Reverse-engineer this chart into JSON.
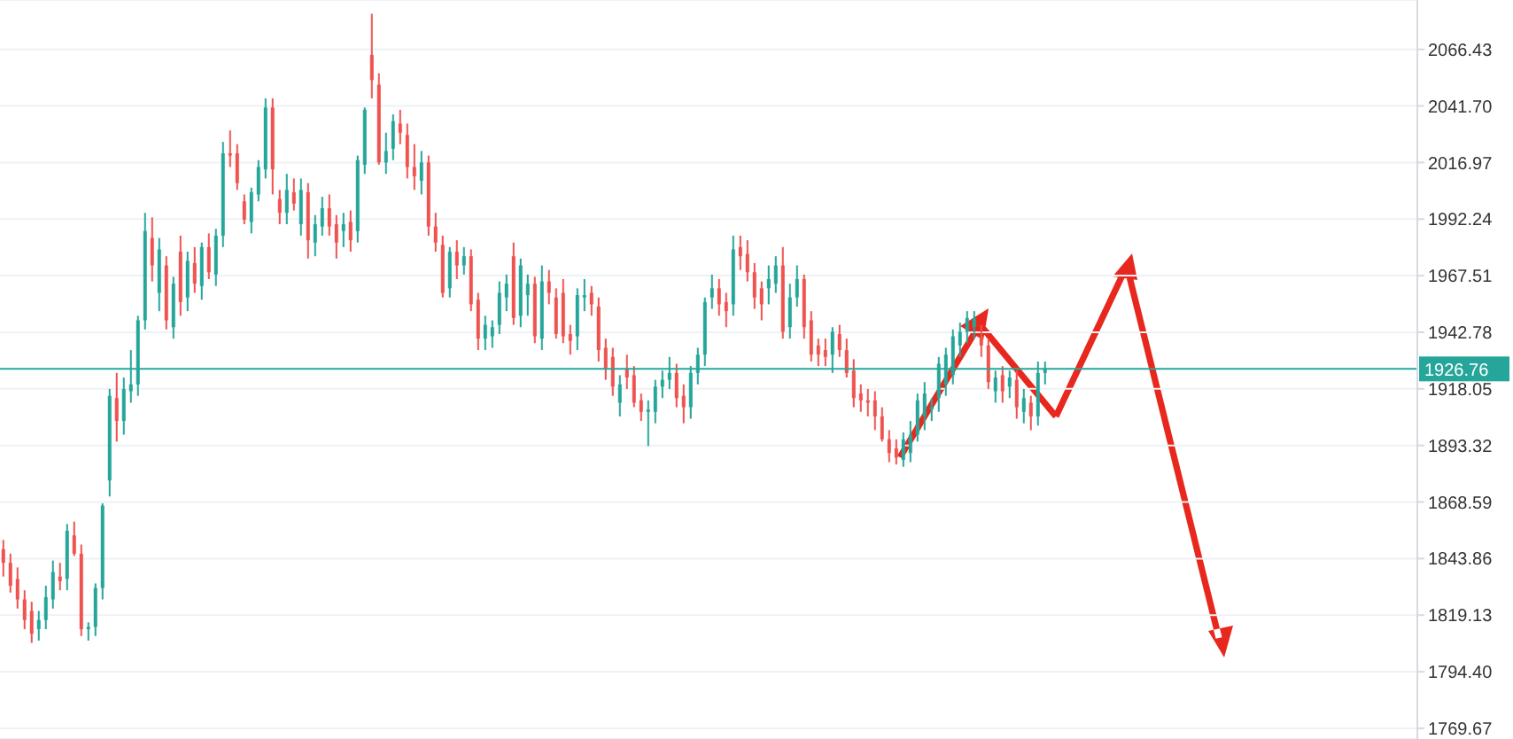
{
  "chart_data": {
    "type": "candlestick",
    "categories": [
      null,
      null,
      null,
      null,
      null,
      null,
      null,
      null,
      null,
      null,
      null,
      null,
      null,
      null,
      null,
      null,
      null,
      null,
      null,
      null,
      null,
      null,
      null,
      null,
      null,
      null,
      null,
      null,
      null,
      null,
      null,
      null,
      null,
      null,
      null,
      null,
      null,
      null,
      null,
      null,
      null,
      null,
      null,
      null,
      null,
      null,
      null,
      null,
      null,
      null,
      null,
      null,
      null,
      null,
      null,
      null,
      null,
      null,
      null,
      null,
      null,
      null,
      null,
      null,
      null,
      null,
      null,
      null,
      null,
      null,
      null,
      null,
      null,
      null,
      null,
      null,
      null,
      null,
      null,
      null,
      null,
      null,
      null,
      null,
      null,
      null,
      null,
      null,
      null,
      null,
      null,
      null,
      null,
      null,
      null,
      null,
      null,
      null,
      null,
      null,
      null,
      null,
      null,
      null,
      null,
      null,
      null,
      null,
      null,
      null,
      null,
      null,
      null,
      null,
      null,
      null,
      null,
      null,
      null,
      null,
      null,
      null,
      null,
      null,
      null,
      null,
      null,
      null,
      null,
      null,
      null,
      null,
      null,
      null,
      null,
      null,
      null,
      null,
      null,
      null,
      null,
      null,
      null,
      null,
      null,
      null,
      null,
      null,
      null,
      null,
      null,
      null,
      null,
      null,
      null,
      null,
      null,
      null,
      null,
      null,
      null,
      null,
      null,
      null,
      null,
      null,
      null,
      null,
      null,
      null,
      null,
      null,
      null,
      null,
      null,
      null,
      null,
      null,
      null,
      null,
      null,
      null,
      null,
      null,
      null,
      null,
      null,
      null,
      null,
      null,
      null,
      null,
      null,
      null,
      null,
      null,
      null,
      null,
      null,
      null
    ],
    "ohlc": [
      [
        1848,
        1852,
        1836,
        1842
      ],
      [
        1842,
        1846,
        1829,
        1832
      ],
      [
        1835,
        1840,
        1822,
        1826
      ],
      [
        1826,
        1830,
        1813,
        1817
      ],
      [
        1821,
        1825,
        1807,
        1811
      ],
      [
        1813,
        1821,
        1808,
        1817
      ],
      [
        1817,
        1832,
        1813,
        1827
      ],
      [
        1826,
        1843,
        1822,
        1838
      ],
      [
        1836,
        1842,
        1830,
        1834
      ],
      [
        1835,
        1859,
        1830,
        1856
      ],
      [
        1854,
        1860,
        1845,
        1846
      ],
      [
        1846,
        1850,
        1810,
        1813
      ],
      [
        1813,
        1816,
        1808,
        1814
      ],
      [
        1814,
        1833,
        1810,
        1831
      ],
      [
        1831,
        1868,
        1826,
        1867
      ],
      [
        1878,
        1918,
        1871,
        1915
      ],
      [
        1914,
        1925,
        1895,
        1904
      ],
      [
        1904,
        1923,
        1898,
        1918
      ],
      [
        1917,
        1935,
        1912,
        1920
      ],
      [
        1920,
        1950,
        1915,
        1948
      ],
      [
        1948,
        1995,
        1944,
        1987
      ],
      [
        1984,
        1993,
        1965,
        1972
      ],
      [
        1960,
        1984,
        1952,
        1979
      ],
      [
        1972,
        1976,
        1944,
        1948
      ],
      [
        1945,
        1967,
        1940,
        1964
      ],
      [
        1978,
        1985,
        1950,
        1956
      ],
      [
        1958,
        1978,
        1952,
        1974
      ],
      [
        1973,
        1980,
        1960,
        1964
      ],
      [
        1963,
        1982,
        1957,
        1980
      ],
      [
        1980,
        1986,
        1966,
        1969
      ],
      [
        1968,
        1988,
        1963,
        1985
      ],
      [
        1985,
        2026,
        1980,
        2021
      ],
      [
        2021,
        2031,
        2015,
        2020
      ],
      [
        2021,
        2025,
        2005,
        2008
      ],
      [
        2000,
        2003,
        1990,
        1992
      ],
      [
        1991,
        2006,
        1986,
        2004
      ],
      [
        2003,
        2018,
        2000,
        2015
      ],
      [
        2014,
        2045,
        2010,
        2041
      ],
      [
        2041,
        2045,
        2003,
        2014
      ],
      [
        2001,
        2005,
        1990,
        1995
      ],
      [
        1995,
        2012,
        1990,
        2005
      ],
      [
        2004,
        2010,
        1996,
        1999
      ],
      [
        1990,
        2010,
        1985,
        2005
      ],
      [
        2004,
        2008,
        1975,
        1983
      ],
      [
        1982,
        1994,
        1976,
        1990
      ],
      [
        1989,
        2002,
        1985,
        1997
      ],
      [
        1997,
        2003,
        1985,
        1989
      ],
      [
        1990,
        1994,
        1975,
        1982
      ],
      [
        1987,
        1995,
        1980,
        1990
      ],
      [
        1991,
        1996,
        1978,
        1983
      ],
      [
        1987,
        2020,
        1982,
        2018
      ],
      [
        2016,
        2041,
        2012,
        2040
      ],
      [
        2064,
        2082,
        2045,
        2053
      ],
      [
        2051,
        2056,
        2016,
        2017
      ],
      [
        2017,
        2030,
        2012,
        2022
      ],
      [
        2023,
        2038,
        2018,
        2035
      ],
      [
        2034,
        2040,
        2025,
        2030
      ],
      [
        2029,
        2034,
        2010,
        2015
      ],
      [
        2015,
        2025,
        2005,
        2011
      ],
      [
        2009,
        2022,
        2003,
        2017
      ],
      [
        2017,
        2020,
        1985,
        1989
      ],
      [
        1989,
        1995,
        1978,
        1982
      ],
      [
        1981,
        1985,
        1958,
        1960
      ],
      [
        1962,
        1980,
        1958,
        1978
      ],
      [
        1978,
        1983,
        1966,
        1972
      ],
      [
        1972,
        1980,
        1968,
        1976
      ],
      [
        1976,
        1979,
        1952,
        1955
      ],
      [
        1957,
        1960,
        1935,
        1940
      ],
      [
        1940,
        1950,
        1935,
        1946
      ],
      [
        1941,
        1948,
        1936,
        1945
      ],
      [
        1946,
        1965,
        1942,
        1960
      ],
      [
        1958,
        1968,
        1952,
        1964
      ],
      [
        1976,
        1982,
        1946,
        1949
      ],
      [
        1950,
        1975,
        1945,
        1972
      ],
      [
        1959,
        1968,
        1950,
        1964
      ],
      [
        1964,
        1967,
        1938,
        1941
      ],
      [
        1940,
        1972,
        1935,
        1965
      ],
      [
        1965,
        1970,
        1955,
        1960
      ],
      [
        1958,
        1962,
        1940,
        1942
      ],
      [
        1960,
        1966,
        1938,
        1941
      ],
      [
        1942,
        1946,
        1933,
        1939
      ],
      [
        1941,
        1962,
        1935,
        1959
      ],
      [
        1958,
        1966,
        1952,
        1959
      ],
      [
        1960,
        1963,
        1950,
        1955
      ],
      [
        1954,
        1958,
        1930,
        1935
      ],
      [
        1936,
        1940,
        1922,
        1927
      ],
      [
        1932,
        1936,
        1915,
        1919
      ],
      [
        1912,
        1924,
        1906,
        1920
      ],
      [
        1927,
        1933,
        1918,
        1923
      ],
      [
        1924,
        1928,
        1910,
        1912
      ],
      [
        1913,
        1916,
        1904,
        1908
      ],
      [
        1908,
        1913,
        1893,
        1909
      ],
      [
        1908,
        1922,
        1903,
        1919
      ],
      [
        1919,
        1926,
        1914,
        1922
      ],
      [
        1922,
        1932,
        1918,
        1925
      ],
      [
        1925,
        1929,
        1910,
        1914
      ],
      [
        1915,
        1920,
        1903,
        1910
      ],
      [
        1910,
        1928,
        1905,
        1925
      ],
      [
        1925,
        1936,
        1920,
        1933
      ],
      [
        1933,
        1958,
        1928,
        1956
      ],
      [
        1958,
        1968,
        1953,
        1962
      ],
      [
        1962,
        1966,
        1950,
        1955
      ],
      [
        1956,
        1960,
        1945,
        1952
      ],
      [
        1955,
        1985,
        1950,
        1979
      ],
      [
        1980,
        1985,
        1970,
        1976
      ],
      [
        1977,
        1983,
        1965,
        1969
      ],
      [
        1969,
        1973,
        1953,
        1958
      ],
      [
        1962,
        1965,
        1948,
        1955
      ],
      [
        1962,
        1972,
        1955,
        1966
      ],
      [
        1964,
        1976,
        1960,
        1972
      ],
      [
        1972,
        1980,
        1940,
        1943
      ],
      [
        1945,
        1964,
        1940,
        1958
      ],
      [
        1958,
        1972,
        1954,
        1966
      ],
      [
        1966,
        1968,
        1940,
        1945
      ],
      [
        1948,
        1952,
        1930,
        1933
      ],
      [
        1937,
        1940,
        1928,
        1933
      ],
      [
        1935,
        1940,
        1928,
        1932
      ],
      [
        1933,
        1945,
        1925,
        1943
      ],
      [
        1942,
        1946,
        1932,
        1935
      ],
      [
        1935,
        1940,
        1923,
        1925
      ],
      [
        1926,
        1931,
        1910,
        1914
      ],
      [
        1916,
        1920,
        1908,
        1913
      ],
      [
        1913,
        1918,
        1906,
        1912
      ],
      [
        1913,
        1917,
        1900,
        1906
      ],
      [
        1906,
        1910,
        1895,
        1896
      ],
      [
        1896,
        1900,
        1886,
        1890
      ],
      [
        1892,
        1896,
        1885,
        1888
      ],
      [
        1887,
        1899,
        1884,
        1896
      ],
      [
        1890,
        1904,
        1886,
        1898
      ],
      [
        1898,
        1916,
        1895,
        1913
      ],
      [
        1906,
        1921,
        1900,
        1916
      ],
      [
        1909,
        1914,
        1904,
        1910
      ],
      [
        1914,
        1932,
        1908,
        1929
      ],
      [
        1920,
        1936,
        1915,
        1933
      ],
      [
        1924,
        1944,
        1920,
        1941
      ],
      [
        1937,
        1947,
        1932,
        1943
      ],
      [
        1943,
        1952,
        1938,
        1949
      ],
      [
        1945,
        1952,
        1940,
        1949
      ],
      [
        1941,
        1946,
        1932,
        1937
      ],
      [
        1937,
        1940,
        1918,
        1921
      ],
      [
        1917,
        1926,
        1912,
        1923
      ],
      [
        1924,
        1928,
        1912,
        1917
      ],
      [
        1919,
        1926,
        1914,
        1923
      ],
      [
        1922,
        1926,
        1905,
        1910
      ],
      [
        1908,
        1918,
        1903,
        1914
      ],
      [
        1912,
        1915,
        1900,
        1906
      ],
      [
        1906,
        1930,
        1902,
        1925
      ],
      [
        1925,
        1930,
        1920,
        1927
      ],
      null,
      null,
      null,
      null,
      null,
      null,
      null,
      null,
      null,
      null,
      null,
      null,
      null,
      null,
      null,
      null,
      null,
      null,
      null,
      null,
      null,
      null,
      null,
      null,
      null,
      null,
      null,
      null,
      null,
      null,
      null,
      null,
      null,
      null,
      null,
      null,
      null,
      null,
      null,
      null,
      null,
      null,
      null,
      null,
      null,
      null,
      null,
      null,
      null,
      null,
      null,
      null
    ],
    "ylim": [
      1765,
      2088
    ],
    "yticks": [
      2066.43,
      {
        "value": 2041.7,
        "label": "2041.70"
      },
      2016.97,
      1992.24,
      1967.51,
      1942.78,
      1918.05,
      1893.32,
      1868.59,
      1843.86,
      1819.13,
      {
        "value": 1794.4,
        "label": "1794.40"
      },
      1769.67
    ],
    "ref_lines": [
      {
        "axis": "y",
        "value": 1926.76,
        "label": "1926.76",
        "color": "#26a69a"
      }
    ],
    "grid": "y",
    "tick_labels": "y"
  }
}
